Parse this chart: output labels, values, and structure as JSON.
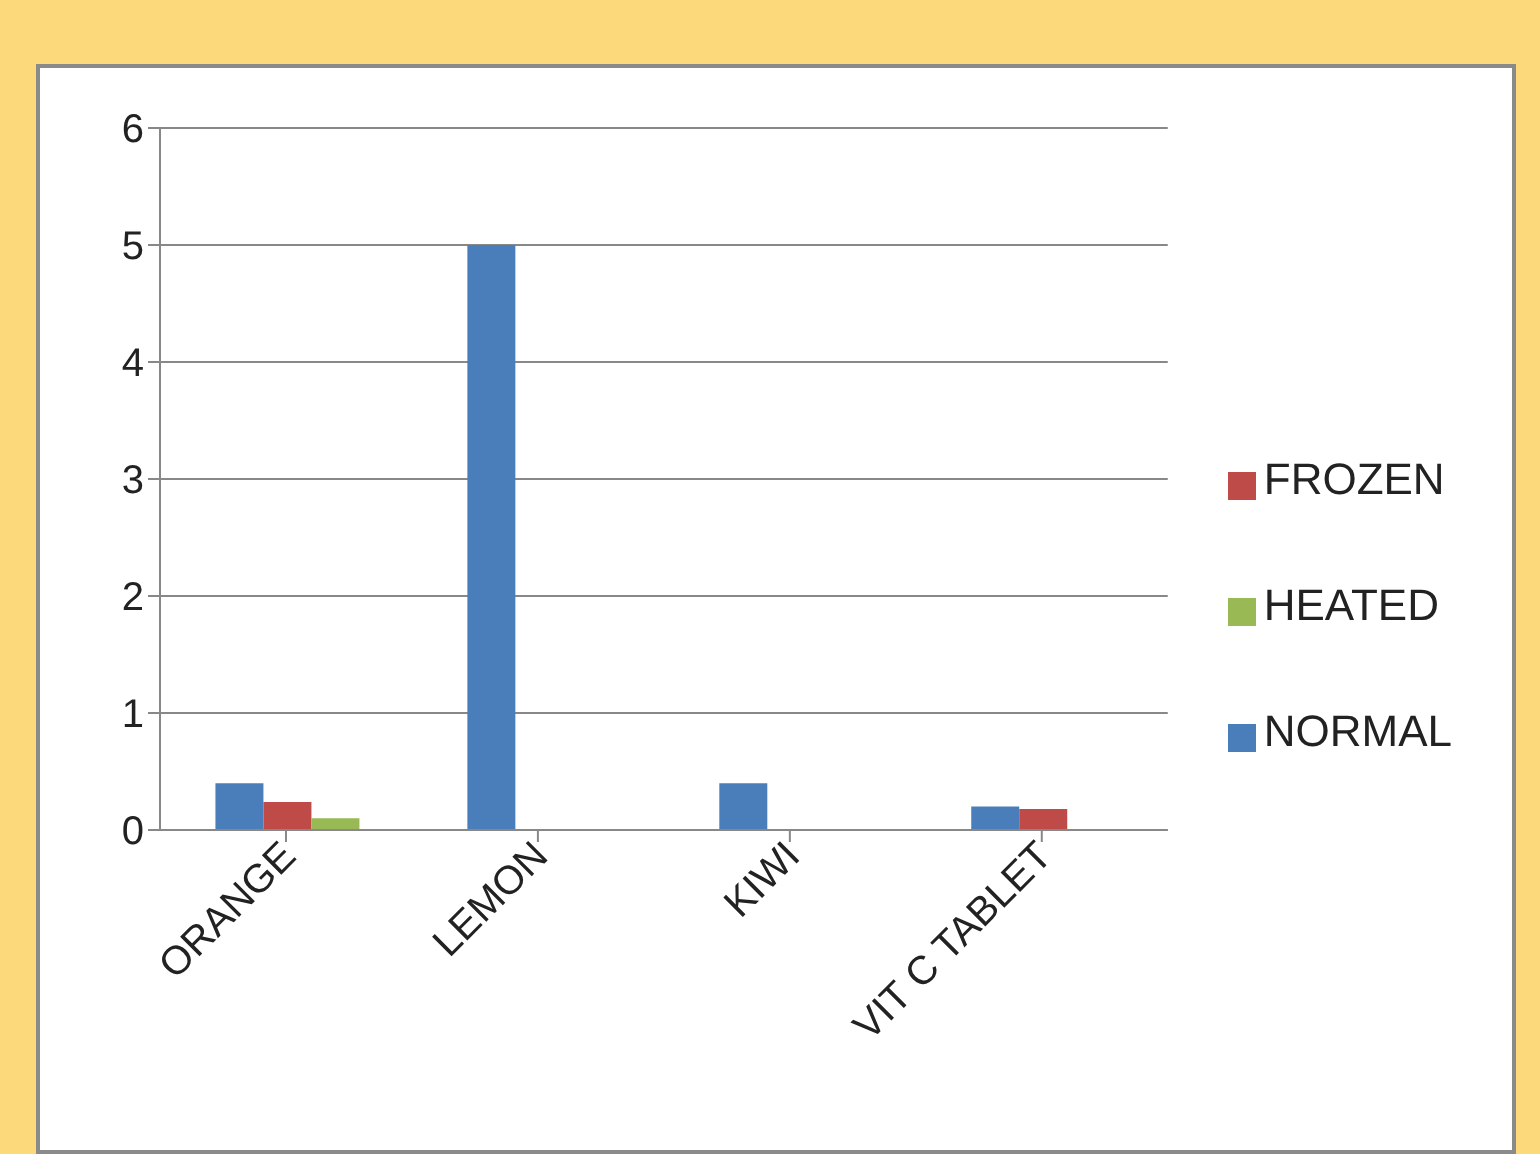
{
  "chart_data": {
    "type": "bar",
    "categories": [
      "ORANGE",
      "LEMON",
      "KIWI",
      "VIT C TABLET"
    ],
    "series": [
      {
        "name": "NORMAL",
        "color": "#4a7ebb",
        "values": [
          0.4,
          5,
          0.4,
          0.2
        ]
      },
      {
        "name": "FROZEN",
        "color": "#be4b48",
        "values": [
          0.24,
          0,
          0,
          0.18
        ]
      },
      {
        "name": "HEATED",
        "color": "#98b954",
        "values": [
          0.1,
          0,
          0,
          0
        ]
      }
    ],
    "ylim": [
      0,
      6
    ],
    "yticks": [
      0,
      1,
      2,
      3,
      4,
      5,
      6
    ],
    "grid": "y",
    "legend": "right"
  }
}
